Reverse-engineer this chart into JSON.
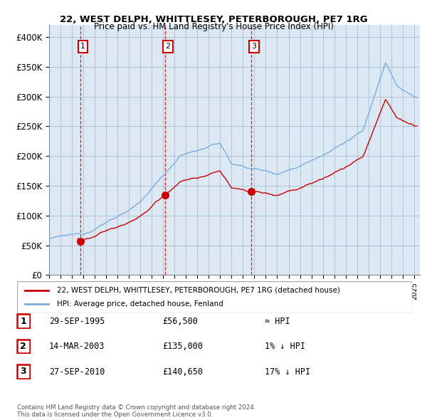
{
  "title": "22, WEST DELPH, WHITTLESEY, PETERBOROUGH, PE7 1RG",
  "subtitle": "Price paid vs. HM Land Registry's House Price Index (HPI)",
  "ylim": [
    0,
    420000
  ],
  "yticks": [
    0,
    50000,
    100000,
    150000,
    200000,
    250000,
    300000,
    350000,
    400000
  ],
  "ytick_labels": [
    "£0",
    "£50K",
    "£100K",
    "£150K",
    "£200K",
    "£250K",
    "£300K",
    "£350K",
    "£400K"
  ],
  "xlim_start": 1993.0,
  "xlim_end": 2025.5,
  "sale_color": "#cc0000",
  "hpi_color": "#7aaddb",
  "bg_color": "#dce9f5",
  "grid_color": "#b0c4d8",
  "legend_label_sale": "22, WEST DELPH, WHITTLESEY, PETERBOROUGH, PE7 1RG (detached house)",
  "legend_label_hpi": "HPI: Average price, detached house, Fenland",
  "transactions": [
    {
      "num": 1,
      "date": "29-SEP-1995",
      "date_x": 1995.75,
      "price": 56500,
      "label": "£56,500",
      "hpi_rel": "≈ HPI"
    },
    {
      "num": 2,
      "date": "14-MAR-2003",
      "date_x": 2003.2,
      "price": 135000,
      "label": "£135,000",
      "hpi_rel": "1% ↓ HPI"
    },
    {
      "num": 3,
      "date": "27-SEP-2010",
      "date_x": 2010.75,
      "price": 140650,
      "label": "£140,650",
      "hpi_rel": "17% ↓ HPI"
    }
  ],
  "footnote": "Contains HM Land Registry data © Crown copyright and database right 2024.\nThis data is licensed under the Open Government Licence v3.0.",
  "vline_color": "#cc0000",
  "label_box_color": "#cc0000"
}
